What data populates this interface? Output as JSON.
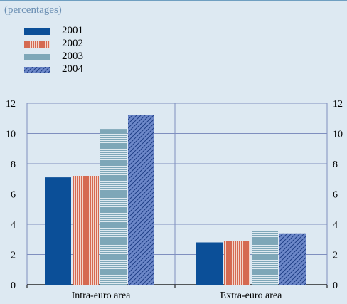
{
  "subtitle": "(percentages)",
  "colors": {
    "2001": "#0b4f98",
    "2002": "#d56a52",
    "2003": "#7ea7b8",
    "2004": "#6d88c9",
    "grid": "#7f8fbf",
    "background": "#dde9f2"
  },
  "legend": [
    {
      "label": "2001",
      "pattern": "solid"
    },
    {
      "label": "2002",
      "pattern": "vertical-stripes"
    },
    {
      "label": "2003",
      "pattern": "horizontal-stripes"
    },
    {
      "label": "2004",
      "pattern": "diagonal-hatch"
    }
  ],
  "chart_data": {
    "type": "bar",
    "title": "",
    "subtitle": "(percentages)",
    "xlabel": "",
    "ylabel": "",
    "categories": [
      "Intra-euro area",
      "Extra-euro area"
    ],
    "series": [
      {
        "name": "2001",
        "values": [
          7.1,
          2.8
        ]
      },
      {
        "name": "2002",
        "values": [
          7.2,
          2.9
        ]
      },
      {
        "name": "2003",
        "values": [
          10.3,
          3.6
        ]
      },
      {
        "name": "2004",
        "values": [
          11.2,
          3.4
        ]
      }
    ],
    "ylim": [
      0,
      12
    ],
    "yticks": [
      0,
      2,
      4,
      6,
      8,
      10,
      12
    ],
    "y_axis_both_sides": true,
    "grid": true,
    "legend_position": "top-left"
  }
}
